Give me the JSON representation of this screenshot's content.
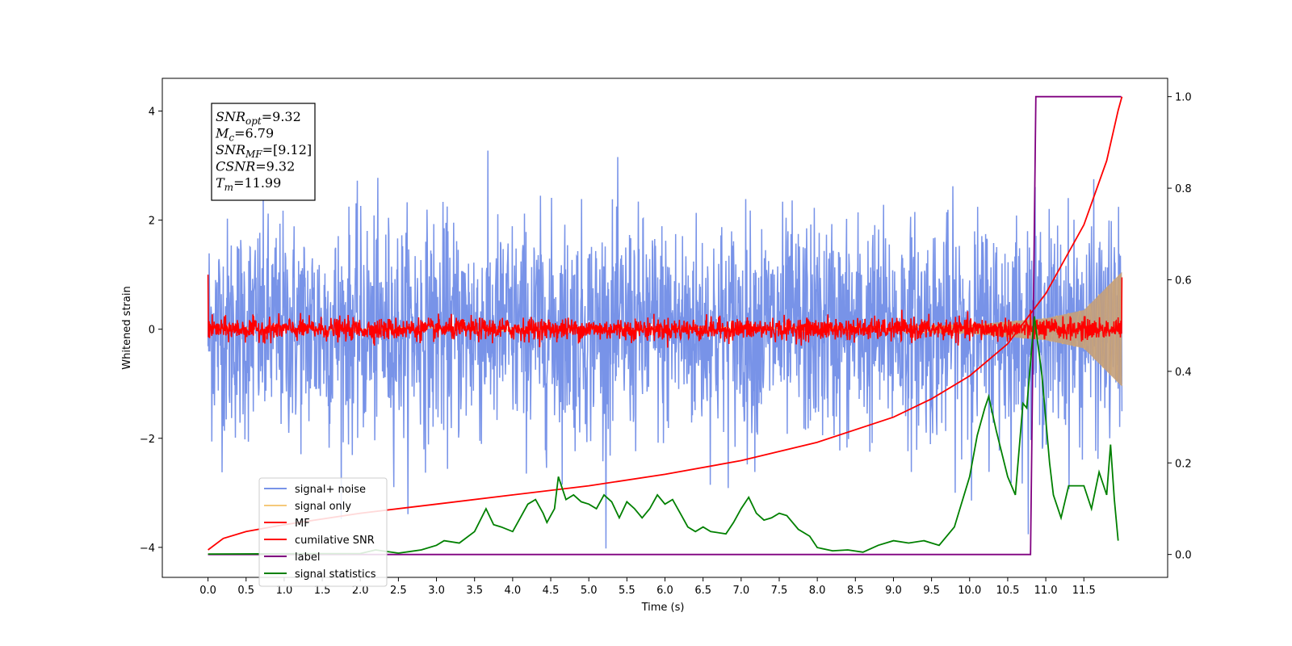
{
  "chart_data": {
    "type": "line",
    "xlabel": "Time (s)",
    "ylabel": "Whitened strain",
    "ylabel_right": "",
    "xlim": [
      -0.6,
      12.6
    ],
    "ylim": [
      -4.55,
      4.6
    ],
    "ylim_right": [
      -0.05,
      1.04
    ],
    "grid": false,
    "legend_position": "lower-left",
    "x_ticks": [
      "0.0",
      "0.5",
      "1.0",
      "1.5",
      "2.0",
      "2.5",
      "3.0",
      "3.5",
      "4.0",
      "4.5",
      "5.0",
      "5.5",
      "6.0",
      "6.5",
      "7.0",
      "7.5",
      "8.0",
      "8.5",
      "9.0",
      "9.5",
      "10.0",
      "10.5",
      "11.0",
      "11.5"
    ],
    "y_ticks": [
      "-4",
      "-2",
      "0",
      "2",
      "4"
    ],
    "y_ticks_right": [
      "0.0",
      "0.2",
      "0.4",
      "0.6",
      "0.8",
      "1.0"
    ],
    "annotation": {
      "lines": [
        {
          "name": "SNR",
          "sub": "opt",
          "value": "=9.32"
        },
        {
          "name": "M",
          "sub": "c",
          "value": "=6.79"
        },
        {
          "name": "SNR",
          "sub": "MF",
          "value": "=[9.12]"
        },
        {
          "name": "CSNR",
          "sub": "",
          "value": "=9.32"
        },
        {
          "name": "T",
          "sub": "m",
          "value": "=11.99"
        }
      ]
    },
    "series": [
      {
        "name": "signal+ noise",
        "color": "#7893e8",
        "axis": "left",
        "kind": "noise",
        "amplitude": 1.0,
        "x_range": [
          0,
          12.0
        ]
      },
      {
        "name": "signal only",
        "color": "#f5c97a",
        "axis": "left",
        "kind": "chirp",
        "x_range": [
          0,
          12.0
        ],
        "envelope": [
          [
            0,
            0.02
          ],
          [
            8.0,
            0.04
          ],
          [
            10.0,
            0.08
          ],
          [
            11.0,
            0.2
          ],
          [
            11.5,
            0.35
          ],
          [
            12.0,
            1.05
          ]
        ]
      },
      {
        "name": "MF",
        "color": "#ff0000",
        "axis": "left",
        "kind": "noise",
        "amplitude": 0.1,
        "x_range": [
          0,
          12.0
        ],
        "start_value": 1.0,
        "end_value": 0.95
      },
      {
        "name": "cumilative SNR",
        "color": "#ff0000",
        "axis": "right",
        "x": [
          0.0,
          0.2,
          0.5,
          1.0,
          2.0,
          3.0,
          4.0,
          5.0,
          6.0,
          7.0,
          8.0,
          9.0,
          9.5,
          10.0,
          10.5,
          11.0,
          11.5,
          11.8,
          11.95,
          12.0
        ],
        "values": [
          0.01,
          0.035,
          0.05,
          0.065,
          0.09,
          0.11,
          0.13,
          0.15,
          0.175,
          0.205,
          0.245,
          0.3,
          0.34,
          0.39,
          0.46,
          0.57,
          0.72,
          0.86,
          0.97,
          1.0
        ]
      },
      {
        "name": "label",
        "color": "#800080",
        "axis": "right",
        "x": [
          0.0,
          10.8,
          10.87,
          11.99
        ],
        "values": [
          0.0,
          0.0,
          1.0,
          1.0
        ]
      },
      {
        "name": "signal statistics",
        "color": "#008000",
        "axis": "right",
        "x": [
          0.0,
          2.0,
          2.2,
          2.5,
          2.8,
          3.0,
          3.1,
          3.3,
          3.5,
          3.65,
          3.75,
          3.85,
          4.0,
          4.1,
          4.2,
          4.3,
          4.4,
          4.45,
          4.55,
          4.6,
          4.7,
          4.8,
          4.9,
          5.0,
          5.1,
          5.2,
          5.3,
          5.4,
          5.5,
          5.6,
          5.7,
          5.8,
          5.9,
          6.0,
          6.1,
          6.2,
          6.3,
          6.4,
          6.5,
          6.6,
          6.8,
          6.9,
          7.0,
          7.1,
          7.2,
          7.3,
          7.4,
          7.5,
          7.6,
          7.75,
          7.9,
          8.0,
          8.2,
          8.4,
          8.6,
          8.8,
          9.0,
          9.2,
          9.4,
          9.6,
          9.8,
          10.0,
          10.1,
          10.2,
          10.25,
          10.35,
          10.5,
          10.6,
          10.7,
          10.75,
          10.85,
          10.95,
          11.05,
          11.1,
          11.2,
          11.3,
          11.5,
          11.6,
          11.7,
          11.8,
          11.85,
          11.9,
          11.95
        ],
        "values": [
          0.001,
          0.002,
          0.01,
          0.003,
          0.01,
          0.02,
          0.03,
          0.025,
          0.05,
          0.1,
          0.065,
          0.06,
          0.05,
          0.08,
          0.11,
          0.12,
          0.09,
          0.07,
          0.1,
          0.17,
          0.12,
          0.13,
          0.115,
          0.11,
          0.1,
          0.13,
          0.115,
          0.08,
          0.115,
          0.1,
          0.08,
          0.1,
          0.13,
          0.11,
          0.12,
          0.09,
          0.06,
          0.05,
          0.06,
          0.05,
          0.045,
          0.07,
          0.1,
          0.125,
          0.09,
          0.075,
          0.08,
          0.09,
          0.085,
          0.055,
          0.04,
          0.015,
          0.008,
          0.01,
          0.005,
          0.02,
          0.03,
          0.025,
          0.03,
          0.02,
          0.06,
          0.17,
          0.26,
          0.32,
          0.345,
          0.27,
          0.17,
          0.13,
          0.33,
          0.32,
          0.52,
          0.39,
          0.2,
          0.13,
          0.08,
          0.15,
          0.15,
          0.1,
          0.18,
          0.13,
          0.24,
          0.12,
          0.03
        ]
      }
    ]
  }
}
